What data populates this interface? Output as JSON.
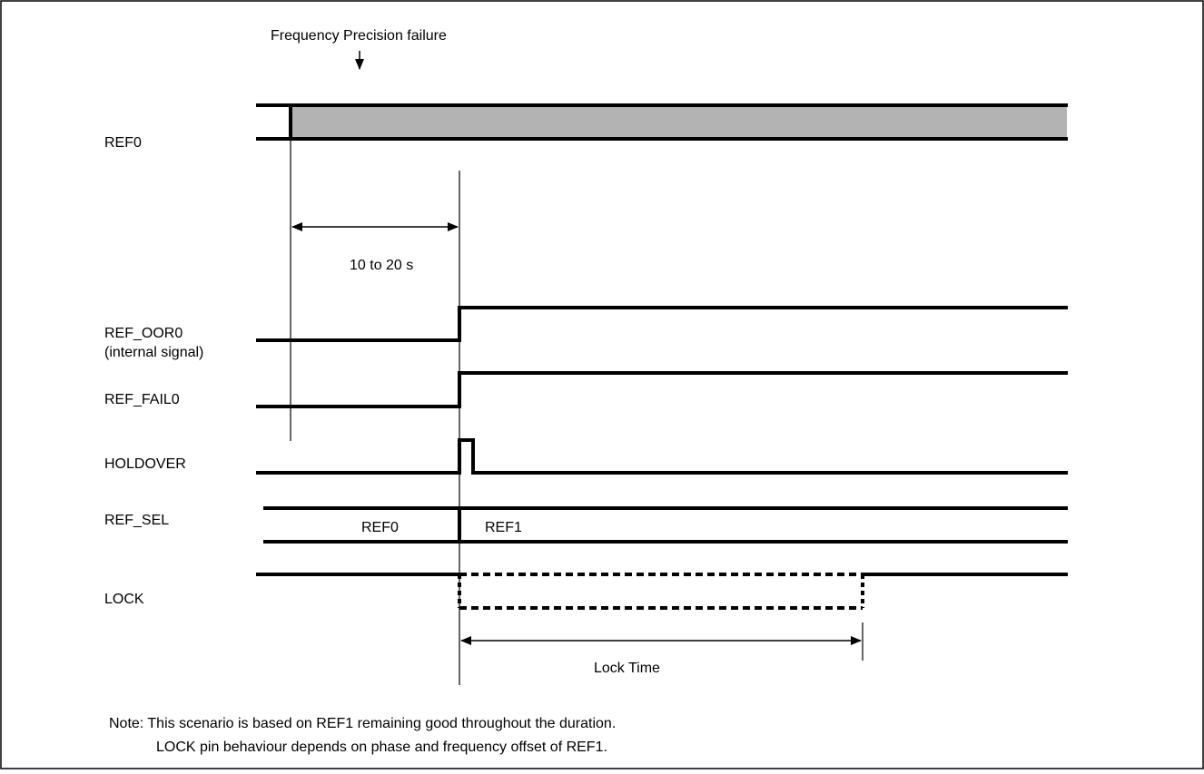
{
  "colors": {
    "line": "#000000",
    "shade": "#b3b3b3",
    "background": "#ffffff"
  },
  "annotations": {
    "failure_label": "Frequency Precision failure",
    "interval_label": "10 to 20 s",
    "lock_time_label": "Lock Time"
  },
  "signals": {
    "ref0": {
      "label": "REF0"
    },
    "ref_oor0": {
      "label_line1": "REF_OOR0",
      "label_line2": "(internal signal)"
    },
    "ref_fail0": {
      "label": "REF_FAIL0"
    },
    "holdover": {
      "label": "HOLDOVER"
    },
    "ref_sel": {
      "label": "REF_SEL",
      "value_before": "REF0",
      "value_after": "REF1"
    },
    "lock": {
      "label": "LOCK"
    }
  },
  "note": {
    "line1": "Note: This scenario is based on REF1 remaining good throughout the duration.",
    "line2": "LOCK pin behaviour depends on phase and frequency offset of REF1."
  }
}
